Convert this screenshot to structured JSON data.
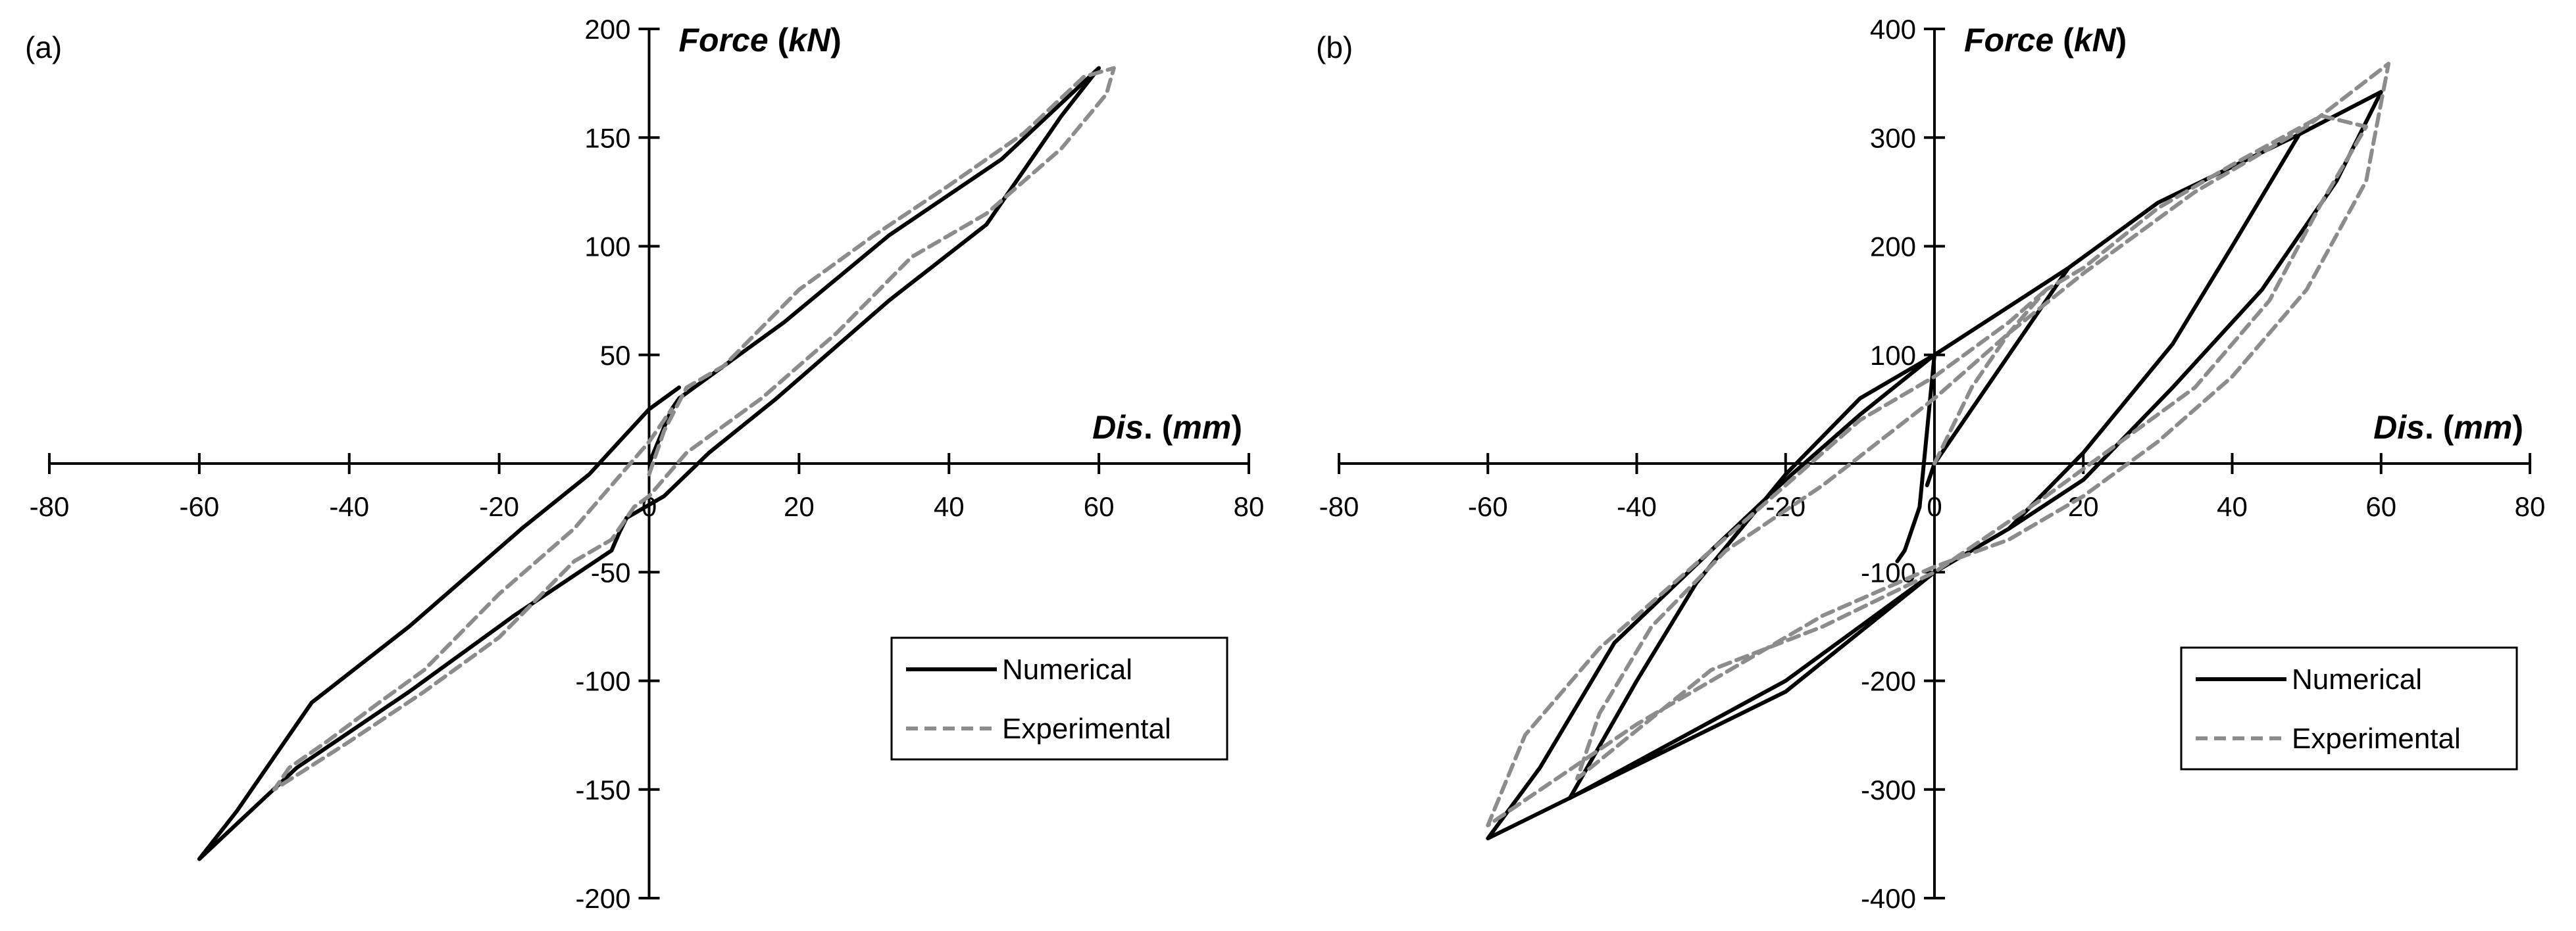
{
  "chart_data": [
    {
      "type": "line",
      "panel_label": "(a)",
      "x_axis_title": {
        "bold_italic": "Dis",
        "plain": ". (",
        "italic": "mm",
        "close": ")"
      },
      "y_axis_title": {
        "bold_italic": "Force",
        "plain": " (",
        "italic": "kN",
        "close": ")"
      },
      "xlim": [
        -80,
        80
      ],
      "ylim": [
        -200,
        200
      ],
      "x_ticks": [
        -80,
        -60,
        -40,
        -20,
        0,
        20,
        40,
        60,
        80
      ],
      "y_ticks": [
        -200,
        -150,
        -100,
        -50,
        0,
        50,
        100,
        150,
        200
      ],
      "legend_position": "lower-right",
      "series": [
        {
          "name": "Numerical",
          "color": "#000000",
          "style": "solid",
          "points": [
            [
              0,
              0
            ],
            [
              3,
              25
            ],
            [
              4,
              30
            ],
            [
              18,
              65
            ],
            [
              32,
              105
            ],
            [
              47,
              140
            ],
            [
              60,
              182
            ],
            [
              55,
              160
            ],
            [
              45,
              110
            ],
            [
              32,
              75
            ],
            [
              17,
              30
            ],
            [
              8,
              5
            ],
            [
              2,
              -15
            ],
            [
              -3,
              -25
            ],
            [
              -4,
              -32
            ],
            [
              -5,
              -40
            ],
            [
              -18,
              -70
            ],
            [
              -32,
              -105
            ],
            [
              -47,
              -140
            ],
            [
              -60,
              -182
            ],
            [
              -55,
              -160
            ],
            [
              -45,
              -110
            ],
            [
              -32,
              -75
            ],
            [
              -17,
              -30
            ],
            [
              -8,
              -5
            ],
            [
              -4,
              10
            ],
            [
              0,
              25
            ],
            [
              4,
              35
            ]
          ]
        },
        {
          "name": "Experimental",
          "color": "#8c8c8c",
          "style": "dashed",
          "points": [
            [
              0,
              -5
            ],
            [
              2,
              15
            ],
            [
              5,
              35
            ],
            [
              10,
              45
            ],
            [
              20,
              80
            ],
            [
              30,
              105
            ],
            [
              40,
              128
            ],
            [
              50,
              152
            ],
            [
              58,
              178
            ],
            [
              62,
              182
            ],
            [
              61,
              170
            ],
            [
              55,
              145
            ],
            [
              45,
              115
            ],
            [
              35,
              95
            ],
            [
              25,
              60
            ],
            [
              15,
              30
            ],
            [
              5,
              5
            ],
            [
              0,
              -15
            ],
            [
              -2,
              -20
            ],
            [
              -5,
              -35
            ],
            [
              -10,
              -45
            ],
            [
              -20,
              -80
            ],
            [
              -30,
              -105
            ],
            [
              -40,
              -128
            ],
            [
              -50,
              -150
            ],
            [
              -48,
              -140
            ],
            [
              -43,
              -128
            ],
            [
              -36,
              -110
            ],
            [
              -30,
              -95
            ],
            [
              -20,
              -60
            ],
            [
              -10,
              -30
            ],
            [
              0,
              10
            ],
            [
              3,
              25
            ]
          ]
        }
      ]
    },
    {
      "type": "line",
      "panel_label": "(b)",
      "x_axis_title": {
        "bold_italic": "Dis",
        "plain": ". (",
        "italic": "mm",
        "close": ")"
      },
      "y_axis_title": {
        "bold_italic": "Force",
        "plain": " (",
        "italic": "kN",
        "close": ")"
      },
      "xlim": [
        -80,
        80
      ],
      "ylim": [
        -400,
        400
      ],
      "x_ticks": [
        -80,
        -60,
        -40,
        -20,
        0,
        20,
        40,
        60,
        80
      ],
      "y_ticks": [
        -400,
        -300,
        -200,
        -100,
        0,
        100,
        200,
        300,
        400
      ],
      "legend_position": "lower-right",
      "series": [
        {
          "name": "Numerical",
          "color": "#000000",
          "style": "solid",
          "points": [
            [
              -1,
              -20
            ],
            [
              0,
              0
            ],
            [
              10,
              100
            ],
            [
              18,
              180
            ],
            [
              30,
              240
            ],
            [
              49,
              303
            ],
            [
              40,
              200
            ],
            [
              32,
              110
            ],
            [
              20,
              10
            ],
            [
              10,
              -60
            ],
            [
              0,
              -100
            ],
            [
              -20,
              -200
            ],
            [
              -49,
              -308
            ],
            [
              -40,
              -200
            ],
            [
              -32,
              -110
            ],
            [
              -20,
              -10
            ],
            [
              -10,
              60
            ],
            [
              0,
              100
            ],
            [
              18,
              180
            ],
            [
              30,
              240
            ],
            [
              49,
              303
            ],
            [
              60,
              342
            ],
            [
              54,
              260
            ],
            [
              44,
              160
            ],
            [
              32,
              70
            ],
            [
              20,
              -15
            ],
            [
              10,
              -60
            ],
            [
              0,
              -100
            ],
            [
              -20,
              -210
            ],
            [
              -60,
              -345
            ],
            [
              -53,
              -280
            ],
            [
              -43,
              -165
            ],
            [
              -30,
              -80
            ],
            [
              -20,
              -15
            ],
            [
              -10,
              45
            ],
            [
              0,
              100
            ],
            [
              -2,
              -40
            ],
            [
              -3,
              -60
            ],
            [
              -4,
              -80
            ],
            [
              -5,
              -90
            ]
          ]
        },
        {
          "name": "Experimental",
          "color": "#8c8c8c",
          "style": "dashed",
          "points": [
            [
              0,
              0
            ],
            [
              5,
              70
            ],
            [
              10,
              120
            ],
            [
              15,
              160
            ],
            [
              20,
              180
            ],
            [
              30,
              235
            ],
            [
              40,
              275
            ],
            [
              52,
              320
            ],
            [
              58,
              310
            ],
            [
              52,
              240
            ],
            [
              45,
              150
            ],
            [
              35,
              70
            ],
            [
              25,
              20
            ],
            [
              15,
              -30
            ],
            [
              0,
              -100
            ],
            [
              -15,
              -150
            ],
            [
              -30,
              -190
            ],
            [
              -48,
              -290
            ],
            [
              -45,
              -230
            ],
            [
              -38,
              -150
            ],
            [
              -28,
              -80
            ],
            [
              -15,
              -20
            ],
            [
              0,
              60
            ],
            [
              10,
              120
            ],
            [
              20,
              175
            ],
            [
              35,
              250
            ],
            [
              50,
              310
            ],
            [
              61,
              368
            ],
            [
              58,
              260
            ],
            [
              50,
              160
            ],
            [
              40,
              80
            ],
            [
              30,
              20
            ],
            [
              20,
              -30
            ],
            [
              10,
              -70
            ],
            [
              0,
              -95
            ],
            [
              -15,
              -140
            ],
            [
              -25,
              -180
            ],
            [
              -40,
              -240
            ],
            [
              -60,
              -333
            ],
            [
              -55,
              -250
            ],
            [
              -45,
              -170
            ],
            [
              -30,
              -80
            ],
            [
              -20,
              -20
            ],
            [
              -10,
              40
            ],
            [
              0,
              80
            ],
            [
              10,
              130
            ],
            [
              15,
              160
            ]
          ]
        }
      ]
    }
  ],
  "legend": {
    "numerical": "Numerical",
    "experimental": "Experimental"
  }
}
